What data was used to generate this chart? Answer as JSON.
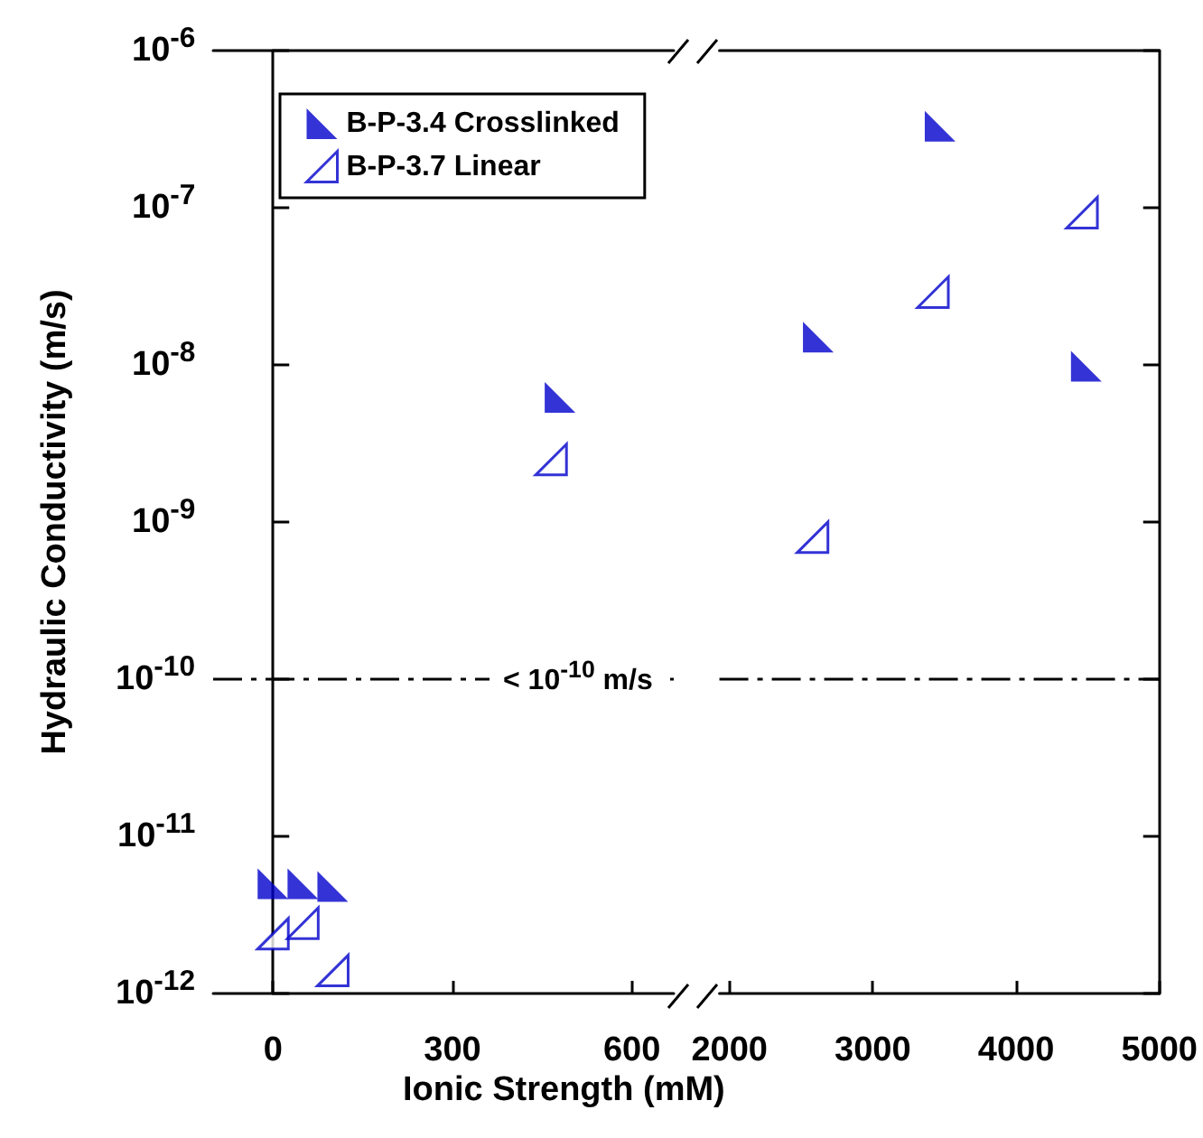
{
  "chart_data": [
    {
      "type": "scatter",
      "ylabel": "Hydraulic Conductivity (m/s)",
      "xlabel": "Ionic Strength (mM)",
      "log": "y",
      "marker": "triangle",
      "legend": "top left",
      "grid": false,
      "xlim": [
        -100,
        670
      ],
      "xticks": [
        0,
        300,
        600
      ],
      "ylim": [
        1e-12,
        1e-06
      ],
      "yticks": [
        {
          "value": 1e-12,
          "label": "10$^{-12}$"
        },
        {
          "value": 1e-11,
          "label": "10$^{-11}$"
        },
        {
          "value": 1e-10,
          "label": "10$^{-10}$"
        },
        {
          "value": 1e-09,
          "label": "10$^{-9}$"
        },
        {
          "value": 1e-08,
          "label": "10$^{-8}$"
        },
        {
          "value": 1e-07,
          "label": "10$^{-7}$"
        },
        {
          "value": 1e-06,
          "label": "10$^{-6}$"
        }
      ],
      "ref_lines": [
        {
          "axis": "y",
          "value": 1e-10,
          "label": "< 10$^{-10}$ m/s",
          "line_style": "dashdot",
          "color": "#000000"
        }
      ],
      "series": [
        {
          "name": "B-P-3.4 Crosslinked",
          "color": "#0000cc",
          "x": [
            0,
            50,
            100,
            480
          ],
          "values": [
            5e-12,
            5e-12,
            4.8e-12,
            6.2e-09
          ]
        },
        {
          "name": "B-P-3.7 Linear",
          "color": "#0000cc",
          "x": [
            0,
            50,
            100,
            465
          ],
          "values": [
            2.4e-12,
            2.8e-12,
            1.4e-12,
            2.5e-09
          ]
        }
      ]
    },
    {
      "type": "scatter",
      "log": "y",
      "marker": "triangle",
      "tick_labels": "x",
      "grid": false,
      "xlim": [
        1930,
        5000
      ],
      "xticks": [
        2000,
        3000,
        4000,
        5000
      ],
      "ylim": [
        1e-12,
        1e-06
      ],
      "ref_lines": [
        {
          "axis": "y",
          "value": 1e-10,
          "line_style": "dashdot",
          "color": "#000000"
        }
      ],
      "series": [
        {
          "color": "#0000cc",
          "x": [
            2620,
            3470,
            4490
          ],
          "values": [
            1.5e-08,
            3.3e-07,
            9.8e-09
          ]
        },
        {
          "color": "#0000cc",
          "x": [
            2580,
            3420,
            4460
          ],
          "values": [
            8e-10,
            2.9e-08,
            9.3e-08
          ]
        }
      ]
    }
  ]
}
